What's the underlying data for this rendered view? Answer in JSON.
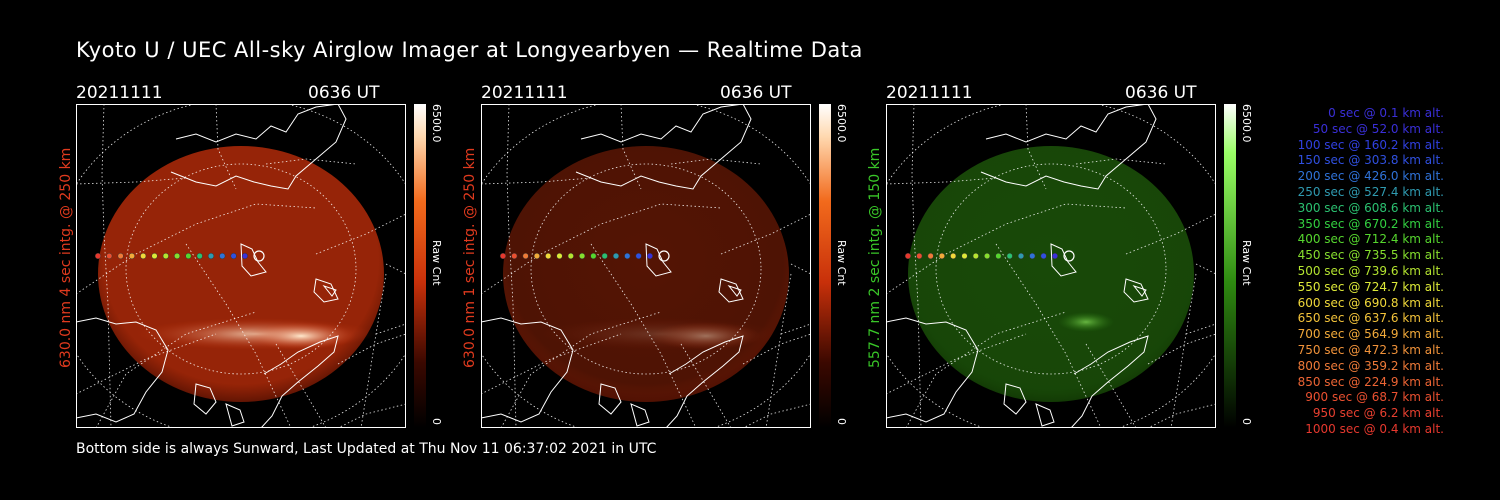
{
  "title": "Kyoto U / UEC All-sky Airglow Imager at Longyearbyen — Realtime Data",
  "footer": "Bottom side is always Sunward, Last Updated at Thu Nov 11 06:37:02 2021 in UTC",
  "panels": [
    {
      "date": "20211111",
      "time": "0636 UT",
      "side_label": "630.0 nm 4 sec intg. @ 250 km",
      "label_color": "#e03a1e",
      "scale_max": "6500.0",
      "scale_min": "0",
      "unit": "Raw Cnt",
      "brightness": 1.0
    },
    {
      "date": "20211111",
      "time": "0636 UT",
      "side_label": "630.0 nm 1 sec intg. @ 250 km",
      "label_color": "#e03a1e",
      "scale_max": "6500.0",
      "scale_min": "0",
      "unit": "Raw Cnt",
      "brightness": 0.4
    },
    {
      "date": "20211111",
      "time": "0636 UT",
      "side_label": "557.7 nm 2 sec intg. @ 150 km",
      "label_color": "#39c628",
      "scale_max": "6500.0",
      "scale_min": "0",
      "unit": "Raw Cnt",
      "brightness": 0.6
    }
  ],
  "colors": {
    "red_bright": "#ffe8cc",
    "red_mid": "#c8300a",
    "red_dark": "#3a0800",
    "green_bright": "#9aff66",
    "green_mid": "#2e8a10",
    "green_dark": "#0a2400"
  },
  "legend": [
    {
      "text": "0 sec @    0.1 km alt.",
      "color": "#3a2fd8"
    },
    {
      "text": "50 sec @   52.0 km alt.",
      "color": "#3a2fd8"
    },
    {
      "text": "100 sec @  160.2 km alt.",
      "color": "#3040e0"
    },
    {
      "text": "150 sec @  303.8 km alt.",
      "color": "#3050e0"
    },
    {
      "text": "200 sec @  426.0 km alt.",
      "color": "#2f72d8"
    },
    {
      "text": "250 sec @  527.4 km alt.",
      "color": "#2f9ab0"
    },
    {
      "text": "300 sec @  608.6 km alt.",
      "color": "#2bc070"
    },
    {
      "text": "350 sec @  670.2 km alt.",
      "color": "#32cf40"
    },
    {
      "text": "400 sec @  712.4 km alt.",
      "color": "#56d62e"
    },
    {
      "text": "450 sec @  735.5 km alt.",
      "color": "#86de2e"
    },
    {
      "text": "500 sec @  739.6 km alt.",
      "color": "#b4e430"
    },
    {
      "text": "550 sec @  724.7 km alt.",
      "color": "#dce838"
    },
    {
      "text": "600 sec @  690.8 km alt.",
      "color": "#f0d83a"
    },
    {
      "text": "650 sec @  637.6 km alt.",
      "color": "#f2c23a"
    },
    {
      "text": "700 sec @  564.9 km alt.",
      "color": "#f2aa3a"
    },
    {
      "text": "750 sec @  472.3 km alt.",
      "color": "#f0923a"
    },
    {
      "text": "800 sec @  359.2 km alt.",
      "color": "#ee7a38"
    },
    {
      "text": "850 sec @  224.9 km alt.",
      "color": "#ec6434"
    },
    {
      "text": "900 sec @   68.7 km alt.",
      "color": "#ea5030"
    },
    {
      "text": "950 sec @    6.2 km alt.",
      "color": "#e84030"
    },
    {
      "text": "1000 sec @    0.4 km alt.",
      "color": "#e6382e"
    }
  ]
}
